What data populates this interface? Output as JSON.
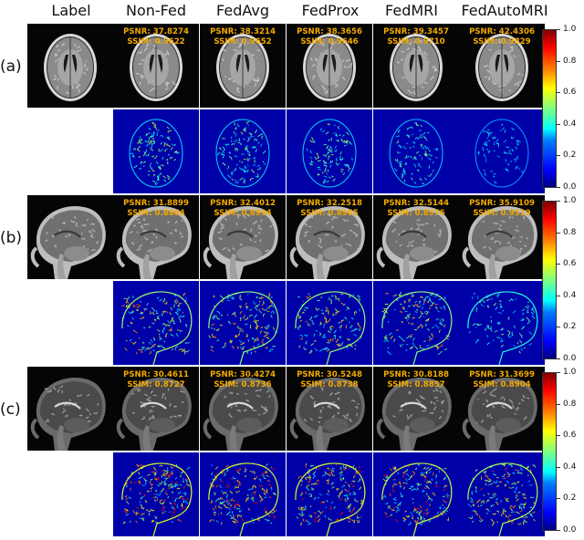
{
  "columns": [
    "Label",
    "Non-Fed",
    "FedAvg",
    "FedProx",
    "FedMRI",
    "FedAutoMRI"
  ],
  "rows": [
    {
      "label": "(a)",
      "view": "axial",
      "metrics": [
        {
          "psnr": "PSNR: 37.8274",
          "ssim": "SSIM: 0.9622"
        },
        {
          "psnr": "PSNR: 38.3214",
          "ssim": "SSIM: 0.9652"
        },
        {
          "psnr": "PSNR: 38.3656",
          "ssim": "SSIM: 0.9646"
        },
        {
          "psnr": "PSNR: 39.3457",
          "ssim": "SSIM: 0.9710"
        },
        {
          "psnr": "PSNR: 42.4306",
          "ssim": "SSIM: 0.9829"
        }
      ],
      "error_level": [
        0.45,
        0.42,
        0.42,
        0.35,
        0.15
      ]
    },
    {
      "label": "(b)",
      "view": "sagittal-t1",
      "metrics": [
        {
          "psnr": "PSNR: 31.8899",
          "ssim": "SSIM: 0.8864"
        },
        {
          "psnr": "PSNR: 32.4012",
          "ssim": "SSIM: 0.8994"
        },
        {
          "psnr": "PSNR: 32.2518",
          "ssim": "SSIM: 0.8965"
        },
        {
          "psnr": "PSNR: 32.5144",
          "ssim": "SSIM: 0.8976"
        },
        {
          "psnr": "PSNR: 35.9109",
          "ssim": "SSIM: 0.9519"
        }
      ],
      "error_level": [
        0.75,
        0.7,
        0.72,
        0.68,
        0.35
      ]
    },
    {
      "label": "(c)",
      "view": "sagittal-t2",
      "metrics": [
        {
          "psnr": "PSNR: 30.4611",
          "ssim": "SSIM: 0.8727"
        },
        {
          "psnr": "PSNR: 30.4274",
          "ssim": "SSIM: 0.8736"
        },
        {
          "psnr": "PSNR: 30.5248",
          "ssim": "SSIM: 0.8738"
        },
        {
          "psnr": "PSNR: 30.8188",
          "ssim": "SSIM: 0.8857"
        },
        {
          "psnr": "PSNR: 31.3699",
          "ssim": "SSIM: 0.8904"
        }
      ],
      "error_level": [
        0.95,
        0.92,
        0.93,
        0.88,
        0.8
      ]
    }
  ],
  "colorbar": {
    "ticks": [
      "1.0",
      "0.8",
      "0.6",
      "0.4",
      "0.2",
      "0.0"
    ],
    "colormap": "jet"
  }
}
